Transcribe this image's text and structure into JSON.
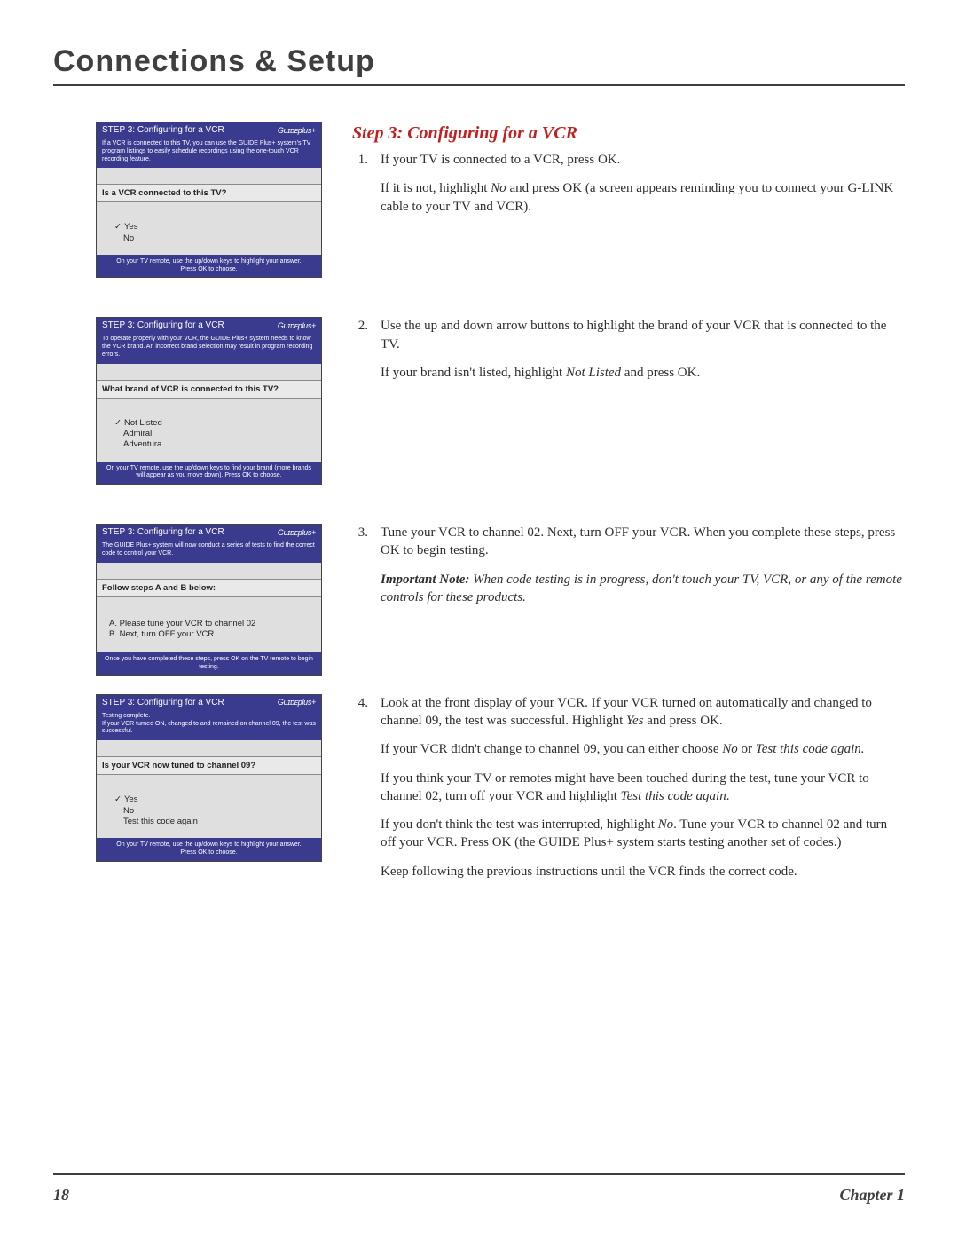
{
  "page": {
    "title": "Connections & Setup",
    "number": "18",
    "chapter": "Chapter 1"
  },
  "heading": "Step 3: Configuring for a VCR",
  "tvbox_common": {
    "header_step": "STEP 3:",
    "header_title": "Configuring for a VCR",
    "brand": "Gᴜɪᴅᴇplus+",
    "header_bg": "#3a3a8f",
    "box_bg": "#dfdfdf"
  },
  "box1": {
    "explain": "If a VCR is connected to this TV, you can use the GUIDE Plus+ system's TV program listings to easily schedule recordings using the one-touch VCR recording feature.",
    "question": "Is a VCR connected to this TV?",
    "options": [
      "Yes",
      "No"
    ],
    "selected": 0,
    "footer": "On your TV remote, use the up/down keys to highlight your answer.\nPress OK to choose."
  },
  "box2": {
    "explain": "To operate properly with your VCR, the GUIDE Plus+ system needs to know the VCR brand. An incorrect brand selection may result in program recording errors.",
    "question": "What brand of VCR is connected to this TV?",
    "options": [
      "Not Listed",
      "Admiral",
      "Adventura"
    ],
    "selected": 0,
    "footer": "On your TV remote, use the up/down keys to find your brand (more brands will appear as you move down). Press OK to choose."
  },
  "box3": {
    "explain": "The GUIDE Plus+ system will now conduct a series of tests to find the correct code to control your VCR.",
    "question": "Follow steps A and B below:",
    "step_a": "A. Please tune your VCR to channel 02",
    "step_b": "B. Next, turn OFF your VCR",
    "footer": "Once you have completed these steps, press OK on the TV remote to begin testing."
  },
  "box4": {
    "explain": "Testing complete.\nIf your VCR turned ON, changed to and remained on channel 09, the test was successful.",
    "question": "Is your VCR now tuned to channel 09?",
    "options": [
      "Yes",
      "No",
      "Test this code again"
    ],
    "selected": 0,
    "footer": "On your TV remote, use the up/down keys to highlight your answer.\nPress OK to choose."
  },
  "body1": {
    "num": "1.",
    "p1": "If your TV is connected to a VCR, press OK.",
    "p2a": "If it is not, highlight ",
    "p2_no": "No",
    "p2b": " and press OK (a screen appears reminding you to connect your G-LINK cable to your TV and VCR)."
  },
  "body2": {
    "num": "2.",
    "p1": "Use the up and down arrow buttons to highlight the brand of your VCR that is connected to the TV.",
    "p2a": "If your brand isn't listed, highlight ",
    "p2_nl": "Not Listed",
    "p2b": " and press OK."
  },
  "body3": {
    "num": "3.",
    "p1": "Tune your VCR to channel 02.  Next, turn OFF your VCR. When you complete these steps, press OK to begin testing.",
    "note_lead": "Important Note:  ",
    "note_rest": "When code testing is in progress, don't touch your TV, VCR, or any of the remote controls for these products."
  },
  "body4": {
    "num": "4.",
    "p1a": "Look at the front display of your VCR. If your VCR turned on automatically and changed to channel 09, the test was successful. Highlight ",
    "p1_yes": "Yes",
    "p1b": " and press OK.",
    "p2a": "If your VCR didn't change to channel 09, you can either choose ",
    "p2_no": "No",
    "p2_or": " or ",
    "p2_test": "Test this code again.",
    "p3a": "If you think your TV or remotes might have been touched during the test, tune your VCR to channel 02, turn off your VCR and highlight ",
    "p3_test": "Test this code again",
    "p3b": ".",
    "p4a": "If you don't think the test was interrupted, highlight ",
    "p4_no": "No",
    "p4b": ". Tune your VCR to channel 02 and turn off your VCR. Press OK (the GUIDE Plus+ system starts testing another set of codes.)",
    "p5": "Keep following the previous instructions until the VCR finds the correct code."
  }
}
